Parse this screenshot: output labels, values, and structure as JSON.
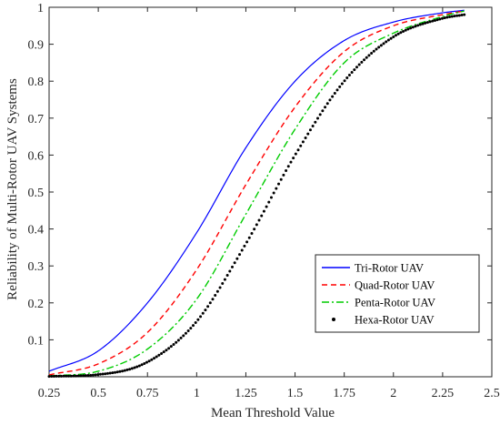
{
  "chart_data": {
    "type": "line",
    "xlabel": "Mean Threshold Value",
    "ylabel": "Reliability of Multi-Rotor UAV Systems",
    "xlim": [
      0.25,
      2.5
    ],
    "ylim": [
      0,
      1
    ],
    "xticks": [
      0.25,
      0.5,
      0.75,
      1,
      1.25,
      1.5,
      1.75,
      2,
      2.25,
      2.5
    ],
    "xtick_labels": [
      "0.25",
      "0.5",
      "0.75",
      "1",
      "1.25",
      "1.5",
      "1.75",
      "2",
      "2.25",
      "2.5"
    ],
    "yticks": [
      0.1,
      0.2,
      0.3,
      0.4,
      0.5,
      0.6,
      0.7,
      0.8,
      0.9,
      1
    ],
    "ytick_labels": [
      "0.1",
      "0.2",
      "0.3",
      "0.4",
      "0.5",
      "0.6",
      "0.7",
      "0.8",
      "0.9",
      "1"
    ],
    "grid": false,
    "legend_position": "lower-right",
    "series": [
      {
        "name": "Tri-Rotor UAV",
        "color": "#0000ff",
        "style": "solid",
        "x": [
          0.25,
          0.5,
          0.75,
          1.0,
          1.25,
          1.5,
          1.75,
          2.0,
          2.25,
          2.36
        ],
        "y": [
          0.015,
          0.07,
          0.2,
          0.39,
          0.62,
          0.8,
          0.91,
          0.96,
          0.985,
          0.992
        ]
      },
      {
        "name": "Quad-Rotor UAV",
        "color": "#ff0000",
        "style": "dashed",
        "x": [
          0.25,
          0.5,
          0.75,
          1.0,
          1.25,
          1.5,
          1.75,
          2.0,
          2.25,
          2.36
        ],
        "y": [
          0.005,
          0.035,
          0.12,
          0.29,
          0.52,
          0.73,
          0.88,
          0.95,
          0.98,
          0.99
        ]
      },
      {
        "name": "Penta-Rotor UAV",
        "color": "#00cc00",
        "style": "dashdot",
        "x": [
          0.25,
          0.5,
          0.75,
          1.0,
          1.25,
          1.5,
          1.75,
          2.0,
          2.25,
          2.36
        ],
        "y": [
          0.002,
          0.015,
          0.075,
          0.21,
          0.44,
          0.67,
          0.85,
          0.93,
          0.975,
          0.99
        ]
      },
      {
        "name": "Hexa-Rotor UAV",
        "color": "#000000",
        "style": "dotted",
        "x": [
          0.25,
          0.5,
          0.75,
          1.0,
          1.25,
          1.5,
          1.75,
          2.0,
          2.25,
          2.36
        ],
        "y": [
          0.001,
          0.006,
          0.04,
          0.15,
          0.36,
          0.6,
          0.8,
          0.92,
          0.97,
          0.98
        ]
      }
    ]
  }
}
